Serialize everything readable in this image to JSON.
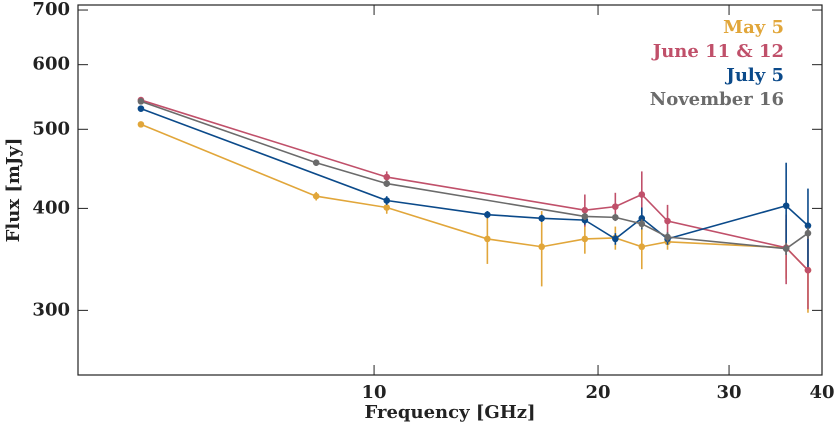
{
  "chart_data": {
    "type": "line",
    "xlabel": "Frequency [GHz]",
    "ylabel": "Flux [mJy]",
    "xscale": "log",
    "yscale": "log",
    "xlim": [
      4,
      40
    ],
    "xticks": [
      10,
      20,
      30,
      40
    ],
    "ylim": [
      250,
      710
    ],
    "yticks": [
      300,
      400,
      500,
      600,
      700
    ],
    "legend": "upper right",
    "series": [
      {
        "name": "May 5",
        "color": "#e1a63a",
        "x": [
          4.86,
          8.36,
          10.4,
          14.2,
          16.8,
          19.2,
          21.1,
          22.9,
          24.8,
          35.8,
          38.3
        ],
        "values": [
          507,
          414,
          401,
          367,
          359,
          367,
          368,
          359,
          364,
          358,
          336
        ],
        "errors": [
          4,
          5,
          7,
          25,
          38,
          15,
          12,
          22,
          8,
          30,
          38
        ]
      },
      {
        "name": "June 11 & 12",
        "color": "#c0506a",
        "x": [
          4.86,
          10.4,
          19.2,
          21.1,
          22.9,
          24.8,
          35.8,
          38.3
        ],
        "values": [
          543,
          437,
          398,
          402,
          416,
          386,
          358,
          336
        ],
        "errors": [
          4,
          7,
          18,
          16,
          28,
          18,
          35,
          35
        ]
      },
      {
        "name": "July 5",
        "color": "#0b4a8a",
        "x": [
          4.86,
          10.4,
          14.2,
          16.8,
          19.2,
          21.1,
          22.9,
          24.8,
          35.8,
          38.3
        ],
        "values": [
          530,
          409,
          393,
          389,
          387,
          367,
          389,
          367,
          403,
          381
        ],
        "errors": [
          4,
          5,
          4,
          4,
          5,
          6,
          12,
          6,
          52,
          42
        ]
      },
      {
        "name": "November 16",
        "color": "#6b6b6b",
        "x": [
          4.86,
          8.36,
          10.4,
          19.2,
          21.1,
          22.9,
          24.8,
          35.8,
          38.3
        ],
        "values": [
          541,
          455,
          429,
          391,
          390,
          383,
          369,
          357,
          373
        ],
        "errors": [
          3,
          4,
          4,
          4,
          4,
          5,
          5,
          6,
          6
        ]
      }
    ]
  }
}
